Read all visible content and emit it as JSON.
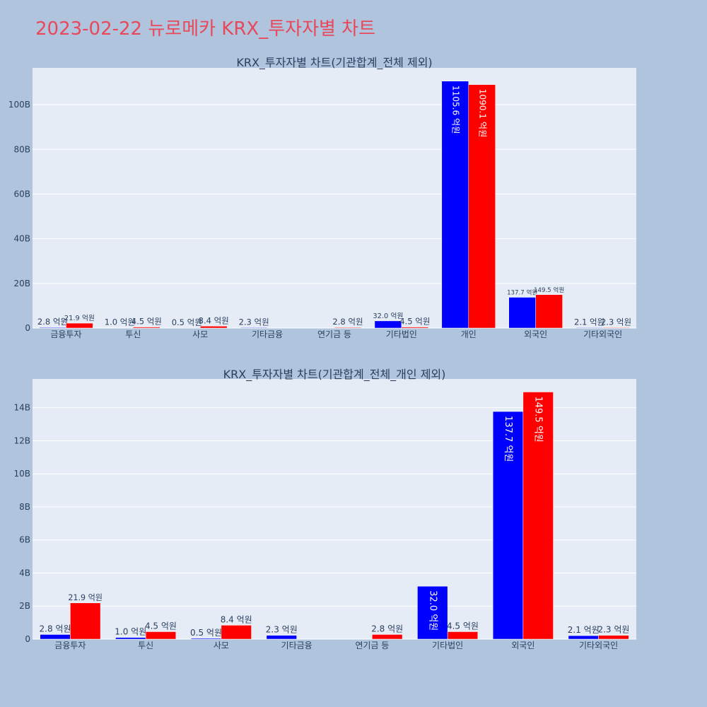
{
  "title": "2023-02-22 뉴로메카 KRX_투자자별 차트",
  "colors": {
    "buy": "#0000ff",
    "sell": "#ff0000",
    "plot_bg": "#e5ecf6",
    "paper_bg": "#b0c4de",
    "title": "#e8485a"
  },
  "chart_data": [
    {
      "type": "bar",
      "title": "KRX_투자자별 차트(기관합계_전체 제외)",
      "categories": [
        "금융투자",
        "투신",
        "사모",
        "기타금융",
        "연기금 등",
        "기타법인",
        "개인",
        "외국인",
        "기타외국인"
      ],
      "series": [
        {
          "color": "#0000ff",
          "values": [
            0.28,
            0.1,
            0.05,
            0.23,
            0,
            3.2,
            110.56,
            13.77,
            0.21
          ],
          "labels": [
            "2.8 억원",
            "1.0 억원",
            "0.5 억원",
            "2.3 억원",
            "",
            "32.0 억원",
            "1105.6 억원",
            "137.7 억원",
            "2.1 억원"
          ]
        },
        {
          "color": "#ff0000",
          "values": [
            2.19,
            0.45,
            0.84,
            0,
            0.28,
            0.45,
            109.01,
            14.95,
            0.23
          ],
          "labels": [
            "21.9 억원",
            "4.5 억원",
            "8.4 억원",
            "",
            "2.8 억원",
            "4.5 억원",
            "1090.1 억원",
            "149.5 억원",
            "2.3 억원"
          ]
        }
      ],
      "ylim": [
        0,
        116.5
      ],
      "yticks": [
        0,
        20,
        40,
        60,
        80,
        100
      ],
      "ytick_labels": [
        "0",
        "20B",
        "40B",
        "60B",
        "80B",
        "100B"
      ],
      "grid": true
    },
    {
      "type": "bar",
      "title": "KRX_투자자별 차트(기관합계_전체_개인 제외)",
      "categories": [
        "금융투자",
        "투신",
        "사모",
        "기타금융",
        "연기금 등",
        "기타법인",
        "외국인",
        "기타외국인"
      ],
      "series": [
        {
          "color": "#0000ff",
          "values": [
            0.28,
            0.1,
            0.05,
            0.23,
            0,
            3.2,
            13.77,
            0.21
          ],
          "labels": [
            "2.8 억원",
            "1.0 억원",
            "0.5 억원",
            "2.3 억원",
            "",
            "32.0 억원",
            "137.7 억원",
            "2.1 억원"
          ]
        },
        {
          "color": "#ff0000",
          "values": [
            2.19,
            0.45,
            0.84,
            0,
            0.28,
            0.45,
            14.95,
            0.23
          ],
          "labels": [
            "21.9 억원",
            "4.5 억원",
            "8.4 억원",
            "",
            "2.8 억원",
            "4.5 억원",
            "149.5 억원",
            "2.3 억원"
          ]
        }
      ],
      "ylim": [
        0,
        15.74
      ],
      "yticks": [
        0,
        2,
        4,
        6,
        8,
        10,
        12,
        14
      ],
      "ytick_labels": [
        "0",
        "2B",
        "4B",
        "6B",
        "8B",
        "10B",
        "12B",
        "14B"
      ],
      "grid": true
    }
  ]
}
